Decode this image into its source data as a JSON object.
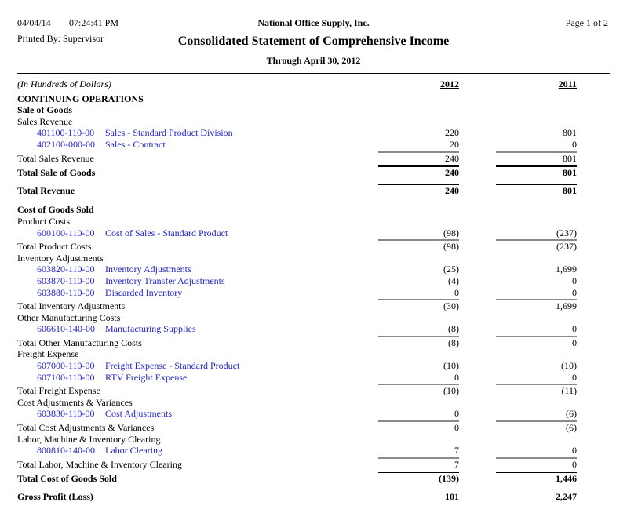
{
  "header": {
    "date": "04/04/14",
    "time": "07:24:41 PM",
    "company": "National Office Supply, Inc.",
    "page_indicator": "Page 1 of 2",
    "printed_by": "Printed By: Supervisor",
    "title": "Consolidated Statement of Comprehensive Income",
    "subtitle": "Through April 30, 2012"
  },
  "columns": {
    "units": "(In Hundreds of Dollars)",
    "col1": "2012",
    "col2": "2011"
  },
  "colors": {
    "link_blue": "#2222cc",
    "rule_gray": "#8a8a8a",
    "text": "#000000"
  },
  "rows": [
    {
      "t": "section",
      "label": "CONTINUING OPERATIONS",
      "gap": 4
    },
    {
      "t": "section",
      "label": "Sale of Goods"
    },
    {
      "t": "group",
      "label": "Sales Revenue"
    },
    {
      "t": "account",
      "acct": "401100-110-00",
      "desc": "Sales - Standard Product Division",
      "v1": "220",
      "v2": "801"
    },
    {
      "t": "account",
      "acct": "402100-000-00",
      "desc": "Sales - Contract",
      "v1": "20",
      "v2": "0"
    },
    {
      "t": "total",
      "label": "Total Sales Revenue",
      "v1": "240",
      "v2": "801",
      "rule": "gray",
      "gap": 3
    },
    {
      "t": "totalBold",
      "label": "Total Sale of Goods",
      "v1": "240",
      "v2": "801",
      "rule": "thick",
      "gap": 4
    },
    {
      "t": "totalBold",
      "label": "Total Revenue",
      "v1": "240",
      "v2": "801",
      "rule": "thin",
      "gap": 8
    },
    {
      "t": "section",
      "label": "Cost of Goods Sold",
      "gap": 10
    },
    {
      "t": "group",
      "label": "Product Costs"
    },
    {
      "t": "account",
      "acct": "600100-110-00",
      "desc": "Cost of Sales - Standard Product",
      "v1": "(98)",
      "v2": "(237)"
    },
    {
      "t": "total",
      "label": "Total Product Costs",
      "v1": "(98)",
      "v2": "(237)",
      "rule": "gray",
      "gap": 3
    },
    {
      "t": "group",
      "label": "Inventory Adjustments"
    },
    {
      "t": "account",
      "acct": "603820-110-00",
      "desc": "Inventory Adjustments",
      "v1": "(25)",
      "v2": "1,699"
    },
    {
      "t": "account",
      "acct": "603870-110-00",
      "desc": "Inventory Transfer Adjustments",
      "v1": "(4)",
      "v2": "0"
    },
    {
      "t": "account",
      "acct": "603880-110-00",
      "desc": "Discarded Inventory",
      "v1": "0",
      "v2": "0"
    },
    {
      "t": "total",
      "label": "Total Inventory Adjustments",
      "v1": "(30)",
      "v2": "1,699",
      "rule": "gray",
      "gap": 3
    },
    {
      "t": "group",
      "label": "Other Manufacturing Costs"
    },
    {
      "t": "account",
      "acct": "606610-140-00",
      "desc": "Manufacturing Supplies",
      "v1": "(8)",
      "v2": "0"
    },
    {
      "t": "total",
      "label": "Total Other Manufacturing Costs",
      "v1": "(8)",
      "v2": "0",
      "rule": "gray",
      "gap": 3
    },
    {
      "t": "group",
      "label": "Freight Expense"
    },
    {
      "t": "account",
      "acct": "607000-110-00",
      "desc": "Freight Expense - Standard Product",
      "v1": "(10)",
      "v2": "(10)"
    },
    {
      "t": "account",
      "acct": "607100-110-00",
      "desc": "RTV Freight Expense",
      "v1": "0",
      "v2": "0"
    },
    {
      "t": "total",
      "label": "Total Freight Expense",
      "v1": "(10)",
      "v2": "(11)",
      "rule": "gray",
      "gap": 3
    },
    {
      "t": "group",
      "label": "Cost Adjustments & Variances"
    },
    {
      "t": "account",
      "acct": "603830-110-00",
      "desc": "Cost Adjustments",
      "v1": "0",
      "v2": "(6)"
    },
    {
      "t": "total",
      "label": "Total Cost Adjustments & Variances",
      "v1": "0",
      "v2": "(6)",
      "rule": "gray",
      "gap": 3
    },
    {
      "t": "group",
      "label": "Labor, Machine & Inventory Clearing"
    },
    {
      "t": "account",
      "acct": "800810-140-00",
      "desc": "Labor Clearing",
      "v1": "7",
      "v2": "0"
    },
    {
      "t": "total",
      "label": "Total Labor, Machine & Inventory Clearing",
      "v1": "7",
      "v2": "0",
      "rule": "gray",
      "gap": 3
    },
    {
      "t": "totalBold",
      "label": "Total Cost of Goods Sold",
      "v1": "(139)",
      "v2": "1,446",
      "rule": "thin",
      "gap": 4
    },
    {
      "t": "totalBold",
      "label": "Gross Profit (Loss)",
      "v1": "101",
      "v2": "2,247",
      "gap": 8
    }
  ]
}
